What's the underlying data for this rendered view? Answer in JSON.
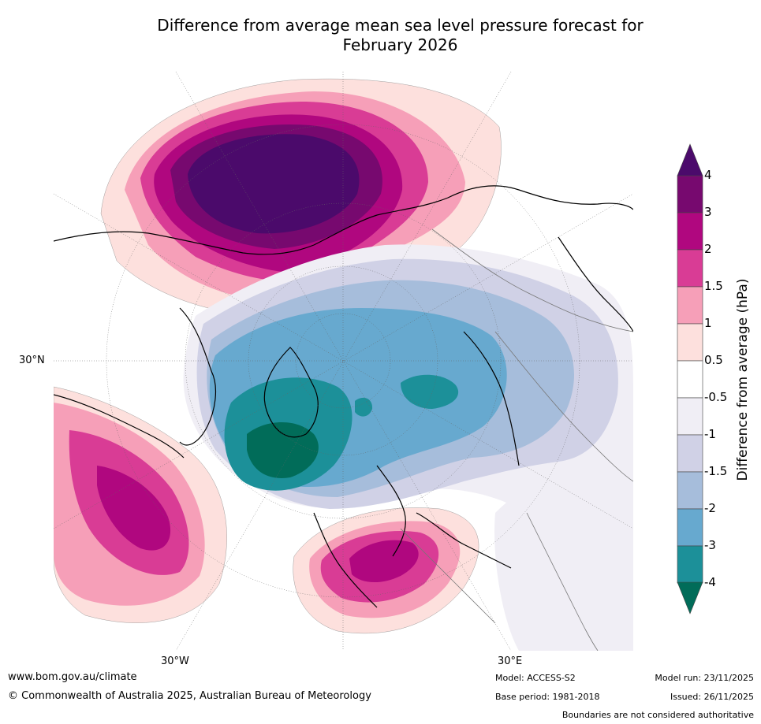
{
  "title": {
    "line1": "Difference from average mean sea level pressure forecast for",
    "line2": "February 2026"
  },
  "map": {
    "projection": "North Polar Stereographic",
    "axis_labels": {
      "left": "30°N",
      "bottom_left": "30°W",
      "bottom_right": "30°E"
    }
  },
  "colorbar": {
    "title": "Difference from average (hPa)",
    "ticks": [
      "4",
      "3",
      "2",
      "1.5",
      "1",
      "0.5",
      "-0.5",
      "-1",
      "-1.5",
      "-2",
      "-3",
      "-4"
    ],
    "colors": {
      "above_4": "#4b0a6b",
      "3_to_4": "#77096f",
      "2_to_3": "#b0077f",
      "1.5_to_2": "#d93c95",
      "1_to_1.5": "#f69fb8",
      "0.5_to_1": "#fde0dd",
      "neutral": "#ffffff",
      "-1_to_-0.5": "#f0eef5",
      "-1.5_to_-1": "#d0d1e6",
      "-2_to_-1.5": "#a6bddb",
      "-3_to_-2": "#67a9cf",
      "-4_to_-3": "#1c9099",
      "below_-4": "#016c59"
    }
  },
  "footer": {
    "website": "www.bom.gov.au/climate",
    "copyright": "© Commonwealth of Australia 2025, Australian Bureau of Meteorology",
    "model": "Model: ACCESS-S2",
    "base_period": "Base period: 1981-2018",
    "model_run": "Model run: 23/11/2025",
    "issued": "Issued: 26/11/2025",
    "disclaimer": "Boundaries are not considered authoritative"
  }
}
